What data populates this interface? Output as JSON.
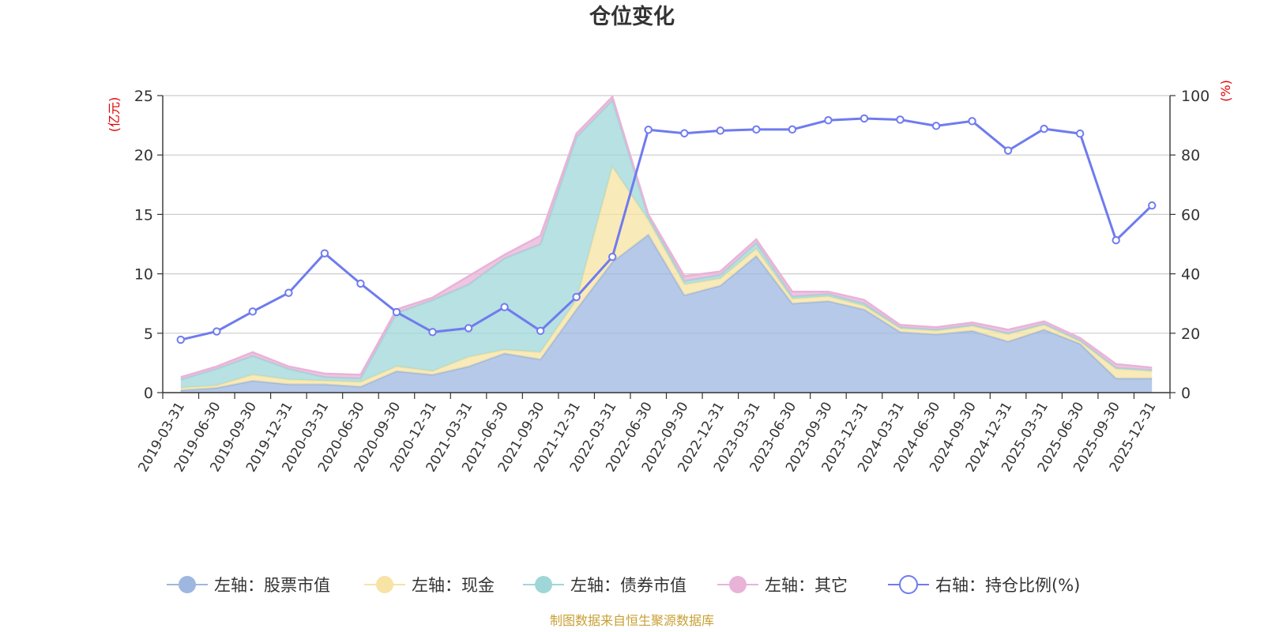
{
  "chart_data": {
    "type": "area",
    "title": "仓位变化",
    "left_axis_unit": "(亿元)",
    "right_axis_unit": "(%)",
    "left_ylim": [
      0,
      25
    ],
    "left_yticks": [
      "0",
      "5",
      "10",
      "15",
      "20",
      "25"
    ],
    "right_ylim": [
      0,
      100
    ],
    "right_yticks": [
      "0",
      "20",
      "40",
      "60",
      "80",
      "100"
    ],
    "categories": [
      "2019-03-31",
      "2019-06-30",
      "2019-09-30",
      "2019-12-31",
      "2020-03-31",
      "2020-06-30",
      "2020-09-30",
      "2020-12-31",
      "2021-03-31",
      "2021-06-30",
      "2021-09-30",
      "2021-12-31",
      "2022-03-31",
      "2022-06-30",
      "2022-09-30",
      "2022-12-31",
      "2023-03-31",
      "2023-06-30",
      "2023-09-30",
      "2023-12-31",
      "2024-03-31",
      "2024-06-30",
      "2024-09-30",
      "2024-12-31",
      "2025-03-31",
      "2025-06-30",
      "2025-09-30",
      "2025-12-31"
    ],
    "series": [
      {
        "name": "左轴：股票市值",
        "axis": "left",
        "stack": true,
        "color": "#9db7e0",
        "values": [
          0.2,
          0.4,
          1.0,
          0.7,
          0.7,
          0.5,
          1.8,
          1.5,
          2.2,
          3.3,
          2.8,
          7.0,
          11.0,
          13.3,
          8.2,
          9.0,
          11.5,
          7.5,
          7.7,
          7.0,
          5.1,
          4.9,
          5.2,
          4.3,
          5.3,
          4.1,
          1.2,
          1.2
        ]
      },
      {
        "name": "左轴：现金",
        "axis": "left",
        "stack": true,
        "color": "#f7e3a3",
        "values": [
          0.2,
          0.2,
          0.5,
          0.4,
          0.3,
          0.4,
          0.4,
          0.3,
          0.8,
          0.3,
          0.6,
          0.8,
          8.0,
          1.2,
          0.9,
          0.6,
          0.6,
          0.4,
          0.4,
          0.3,
          0.3,
          0.3,
          0.4,
          0.6,
          0.4,
          0.2,
          0.8,
          0.6
        ]
      },
      {
        "name": "左轴：债券市值",
        "axis": "left",
        "stack": true,
        "color": "#9fd7d8",
        "values": [
          0.7,
          1.4,
          1.6,
          0.9,
          0.3,
          0.3,
          4.5,
          6.0,
          6.1,
          7.7,
          9.1,
          13.7,
          5.6,
          0.3,
          0.3,
          0.3,
          0.5,
          0.2,
          0.2,
          0.2,
          0.1,
          0.1,
          0.1,
          0.1,
          0.1,
          0.1,
          0.1,
          0.1
        ]
      },
      {
        "name": "左轴：其它",
        "axis": "left",
        "stack": true,
        "color": "#e9b3d8",
        "values": [
          0.2,
          0.2,
          0.3,
          0.2,
          0.3,
          0.3,
          0.3,
          0.2,
          0.7,
          0.3,
          0.7,
          0.3,
          0.3,
          0.2,
          0.4,
          0.3,
          0.3,
          0.4,
          0.2,
          0.3,
          0.2,
          0.2,
          0.2,
          0.3,
          0.2,
          0.2,
          0.3,
          0.2
        ]
      },
      {
        "name": "右轴：持仓比例(%)",
        "axis": "right",
        "stack": false,
        "color": "#6f7bef",
        "values": [
          17.8,
          20.6,
          27.3,
          33.6,
          46.9,
          36.7,
          27.1,
          20.4,
          21.7,
          28.8,
          20.8,
          32.2,
          45.7,
          88.5,
          87.3,
          88.2,
          88.6,
          88.6,
          91.7,
          92.3,
          91.9,
          89.8,
          91.4,
          81.5,
          88.8,
          87.2,
          51.3,
          63.0
        ]
      }
    ]
  },
  "footer": {
    "source": "制图数据来自恒生聚源数据库"
  }
}
